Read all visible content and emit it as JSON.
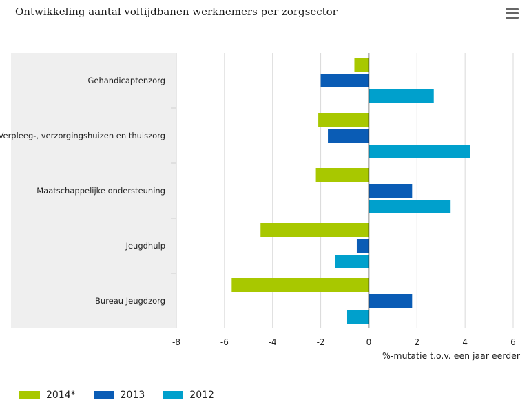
{
  "chart_data": {
    "type": "bar",
    "orientation": "horizontal",
    "title": "Ontwikkeling aantal voltijdbanen werknemers per zorgsector",
    "xlabel": "%-mutatie t.o.v. een jaar eerder",
    "ylabel": "",
    "xlim": [
      -8,
      6
    ],
    "xticks": [
      "-8",
      "-6",
      "-4",
      "-2",
      "0",
      "2",
      "4",
      "6"
    ],
    "grid": true,
    "legend_position": "bottom-left",
    "categories": [
      "Gehandicaptenzorg",
      "Verpleeg-, verzorgingshuizen en thuiszorg",
      "Maatschappelijke ondersteuning",
      "Jeugdhulp",
      "Bureau Jeugdzorg"
    ],
    "series": [
      {
        "name": "2014*",
        "color": "#a8c800",
        "values": [
          -0.6,
          -2.1,
          -2.2,
          -4.5,
          -5.7
        ]
      },
      {
        "name": "2013",
        "color": "#0a5cb5",
        "values": [
          -2.0,
          -1.7,
          1.8,
          -0.5,
          1.8
        ]
      },
      {
        "name": "2012",
        "color": "#00a0cc",
        "values": [
          2.7,
          4.2,
          3.4,
          -1.4,
          -0.9
        ]
      }
    ]
  }
}
